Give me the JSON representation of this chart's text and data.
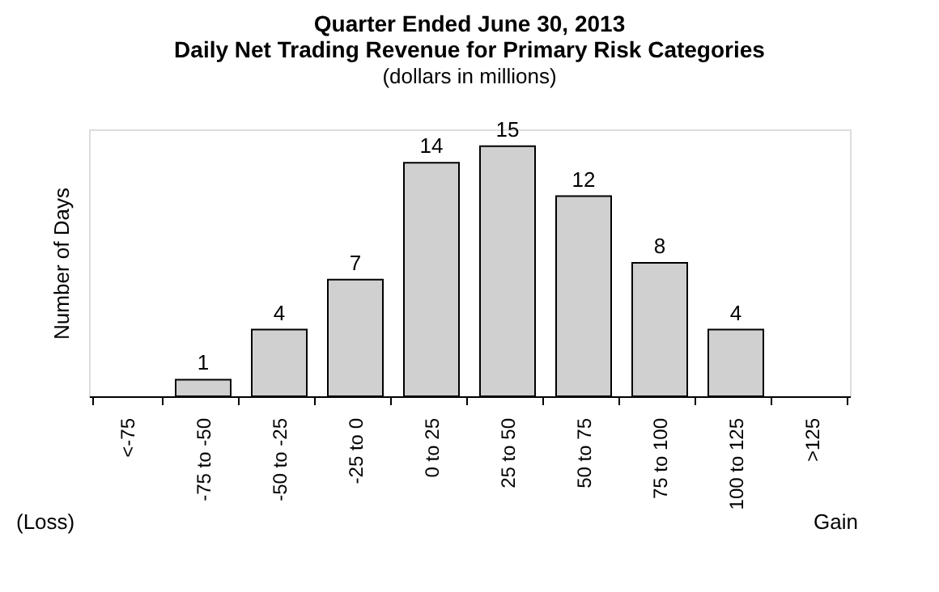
{
  "chart_data": {
    "type": "bar",
    "title": "Quarter Ended June 30, 2013",
    "subtitle": "Daily Net Trading Revenue for Primary Risk Categories",
    "ylabel": "Number of Days",
    "annotations": [
      "(dollars in millions)",
      "(Loss)",
      "Gain"
    ],
    "categories": [
      "<-75",
      "-75 to -50",
      "-50 to -25",
      "-25 to 0",
      "0 to 25",
      "25 to 50",
      "50 to 75",
      "75 to 100",
      "100 to 125",
      ">125"
    ],
    "values": [
      0,
      1,
      4,
      7,
      14,
      15,
      12,
      8,
      4,
      0
    ],
    "value_labels": [
      null,
      "1",
      "4",
      "7",
      "14",
      "15",
      "12",
      "8",
      "4",
      null
    ],
    "color": "#d0d0d0",
    "tick_labels": "x",
    "grid": false
  }
}
